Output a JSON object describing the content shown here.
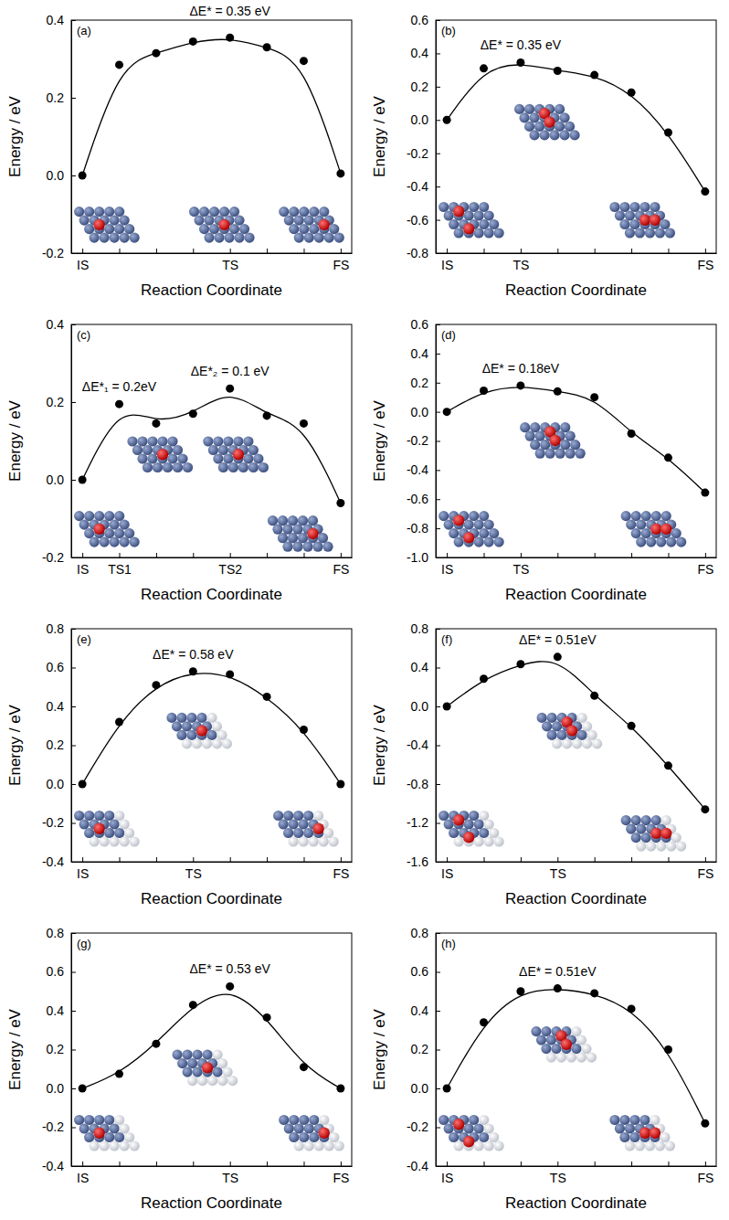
{
  "chart_data": [
    {
      "type": "line",
      "title": "(a)",
      "annotations": [
        "ΔE* = 0.35 eV"
      ],
      "x_label": "Reaction Coordinate",
      "y_label": "Energy / eV",
      "categories": [
        "IS",
        null,
        null,
        null,
        "TS",
        null,
        null,
        "FS"
      ],
      "values": [
        0,
        0.285,
        0.315,
        0.345,
        0.355,
        0.33,
        0.295,
        0.005
      ],
      "ylim": [
        -0.2,
        0.4
      ],
      "yticks": [
        -0.2,
        {
          "value": 0,
          "label": "0.0"
        },
        0.2,
        0.4
      ],
      "color": "#000000",
      "marker": "circle",
      "line_style": "smooth"
    },
    {
      "type": "line",
      "title": "(b)",
      "annotations": [
        "ΔE* = 0.35 eV"
      ],
      "x_label": "Reaction Coordinate",
      "y_label": "Energy / eV",
      "categories": [
        "IS",
        null,
        "TS",
        null,
        null,
        null,
        null,
        "FS"
      ],
      "values": [
        0,
        0.31,
        0.345,
        0.295,
        0.27,
        0.165,
        -0.075,
        -0.43
      ],
      "ylim": [
        -0.8,
        0.6
      ],
      "yticks": [
        -0.8,
        -0.6,
        -0.4,
        -0.2,
        {
          "value": 0,
          "label": "0.0"
        },
        0.2,
        0.4,
        0.6
      ],
      "color": "#000000",
      "marker": "circle",
      "line_style": "smooth"
    },
    {
      "type": "line",
      "title": "(c)",
      "annotations": [
        "ΔE*₁ = 0.2eV",
        "ΔE*₂ = 0.1 eV"
      ],
      "x_label": "Reaction Coordinate",
      "y_label": "Energy / eV",
      "categories": [
        "IS",
        "TS1",
        null,
        null,
        "TS2",
        null,
        null,
        "FS"
      ],
      "values": [
        0,
        0.195,
        0.145,
        0.17,
        0.235,
        0.165,
        0.145,
        -0.06
      ],
      "ylim": [
        -0.2,
        0.4
      ],
      "yticks": [
        -0.2,
        {
          "value": 0,
          "label": "0.0"
        },
        0.2,
        0.4
      ],
      "color": "#000000",
      "marker": "circle",
      "line_style": "smooth"
    },
    {
      "type": "line",
      "title": "(d)",
      "annotations": [
        "ΔE* = 0.18eV"
      ],
      "x_label": "Reaction Coordinate",
      "y_label": "Energy / eV",
      "categories": [
        "IS",
        null,
        "TS",
        null,
        null,
        null,
        null,
        "FS"
      ],
      "values": [
        0,
        0.145,
        0.18,
        0.14,
        0.1,
        -0.15,
        -0.315,
        -0.555
      ],
      "ylim": [
        -1,
        0.6
      ],
      "yticks": [
        {
          "value": -1,
          "label": "-1.0"
        },
        -0.8,
        -0.6,
        -0.4,
        -0.2,
        {
          "value": 0,
          "label": "0.0"
        },
        0.2,
        0.4,
        0.6
      ],
      "color": "#000000",
      "marker": "circle",
      "line_style": "smooth"
    },
    {
      "type": "line",
      "title": "(e)",
      "annotations": [
        "ΔE* = 0.58 eV"
      ],
      "x_label": "Reaction Coordinate",
      "y_label": "Energy / eV",
      "categories": [
        "IS",
        null,
        null,
        "TS",
        null,
        null,
        null,
        "FS"
      ],
      "values": [
        0,
        0.32,
        0.51,
        0.58,
        0.565,
        0.45,
        0.28,
        0
      ],
      "ylim": [
        -0.4,
        0.8
      ],
      "yticks": [
        -0.4,
        -0.2,
        {
          "value": 0,
          "label": "0.0"
        },
        0.2,
        0.4,
        0.6,
        0.8
      ],
      "color": "#000000",
      "marker": "circle",
      "line_style": "smooth"
    },
    {
      "type": "line",
      "title": "(f)",
      "annotations": [
        "ΔE* = 0.51eV"
      ],
      "x_label": "Reaction Coordinate",
      "y_label": "Energy / eV",
      "categories": [
        "IS",
        null,
        null,
        "TS",
        null,
        null,
        null,
        "FS"
      ],
      "values": [
        0,
        0.285,
        0.435,
        0.51,
        0.11,
        -0.2,
        -0.61,
        -1.06
      ],
      "ylim": [
        -1.6,
        0.8
      ],
      "yticks": [
        -1.6,
        -1.2,
        -0.8,
        -0.4,
        {
          "value": 0,
          "label": "0.0"
        },
        0.4,
        0.8
      ],
      "color": "#000000",
      "marker": "circle",
      "line_style": "smooth"
    },
    {
      "type": "line",
      "title": "(g)",
      "annotations": [
        "ΔE* = 0.53 eV"
      ],
      "x_label": "Reaction Coordinate",
      "y_label": "Energy / eV",
      "categories": [
        "IS",
        null,
        null,
        null,
        "TS",
        null,
        null,
        "FS"
      ],
      "values": [
        0,
        0.075,
        0.23,
        0.43,
        0.525,
        0.365,
        0.11,
        0
      ],
      "ylim": [
        -0.4,
        0.8
      ],
      "yticks": [
        -0.4,
        -0.2,
        {
          "value": 0,
          "label": "0.0"
        },
        0.2,
        0.4,
        0.6,
        0.8
      ],
      "color": "#000000",
      "marker": "circle",
      "line_style": "smooth"
    },
    {
      "type": "line",
      "title": "(h)",
      "annotations": [
        "ΔE* = 0.51eV"
      ],
      "x_label": "Reaction Coordinate",
      "y_label": "Energy / eV",
      "categories": [
        "IS",
        null,
        null,
        "TS",
        null,
        null,
        null,
        "FS"
      ],
      "values": [
        0,
        0.34,
        0.5,
        0.515,
        0.49,
        0.41,
        0.2,
        -0.18
      ],
      "ylim": [
        -0.4,
        0.8
      ],
      "yticks": [
        -0.4,
        -0.2,
        {
          "value": 0,
          "label": "0.0"
        },
        0.2,
        0.4,
        0.6,
        0.8
      ],
      "color": "#000000",
      "marker": "circle",
      "line_style": "smooth"
    }
  ]
}
